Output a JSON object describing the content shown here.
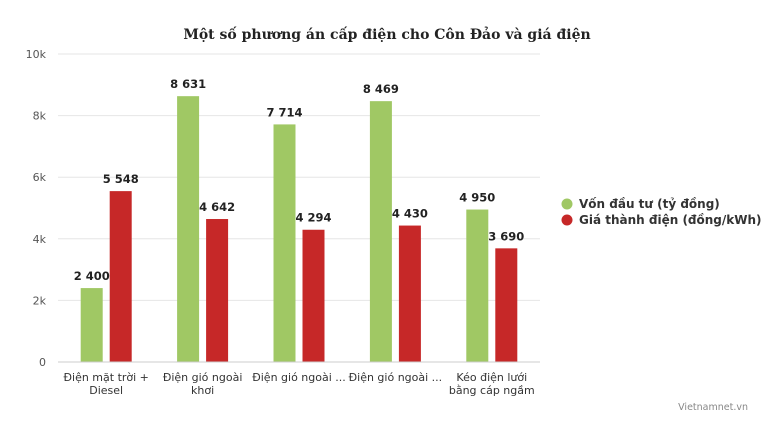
{
  "chart_data": {
    "type": "bar",
    "title": "Một số phương án cấp điện cho Côn Đảo và giá điện",
    "categories": [
      [
        "Điện mặt trời +",
        "Diesel"
      ],
      [
        "Điện gió ngoài",
        "khơi"
      ],
      [
        "Điện gió ngoài ..."
      ],
      [
        "Điện gió ngoài ..."
      ],
      [
        "Kéo điện lưới",
        "bằng cáp ngầm"
      ]
    ],
    "series": [
      {
        "name": "Vốn đầu tư (tỷ đồng)",
        "color": "#a0c864",
        "values": [
          2400,
          8631,
          7714,
          8469,
          4950
        ],
        "labels": [
          "2 400",
          "8 631",
          "7 714",
          "8 469",
          "4 950"
        ]
      },
      {
        "name": "Giá thành điện (đồng/kWh)",
        "color": "#c62828",
        "values": [
          5548,
          4642,
          4294,
          4430,
          3690
        ],
        "labels": [
          "5 548",
          "4 642",
          "4 294",
          "4 430",
          "3 690"
        ]
      }
    ],
    "y_ticks": [
      {
        "value": 0,
        "label": "0"
      },
      {
        "value": 2000,
        "label": "2k"
      },
      {
        "value": 4000,
        "label": "4k"
      },
      {
        "value": 6000,
        "label": "6k"
      },
      {
        "value": 8000,
        "label": "8k"
      },
      {
        "value": 10000,
        "label": "10k"
      }
    ],
    "ylim": [
      0,
      10000
    ],
    "grid": true,
    "legend_position": "right"
  },
  "credit": "Vietnamnet.vn"
}
